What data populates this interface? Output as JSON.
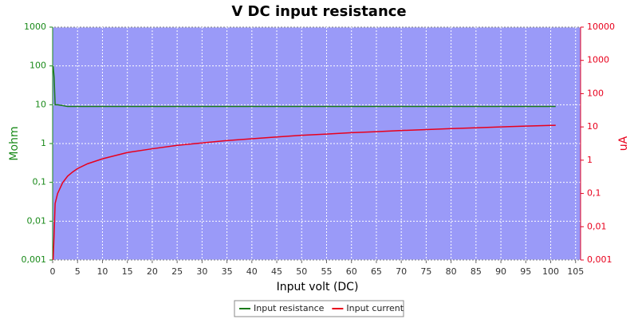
{
  "chart_data": {
    "type": "line",
    "title": "V DC input resistance",
    "x_label": "Input volt (DC)",
    "y_label": "Mohm",
    "y2_label": "uA",
    "xlim": [
      0,
      106
    ],
    "xticks": [
      0,
      5,
      10,
      15,
      20,
      25,
      30,
      35,
      40,
      45,
      50,
      55,
      60,
      65,
      70,
      75,
      80,
      85,
      90,
      95,
      100,
      105
    ],
    "ylim": [
      0.001,
      1000
    ],
    "log_y": true,
    "yticks": [
      {
        "value": 0.001,
        "label": "0,001"
      },
      {
        "value": 0.01,
        "label": "0,01"
      },
      {
        "value": 0.1,
        "label": "0,1"
      },
      1,
      10,
      100,
      1000
    ],
    "y2lim": [
      0.001,
      10000
    ],
    "log_y2": true,
    "y2ticks": [
      {
        "value": 0.001,
        "label": "0,001"
      },
      {
        "value": 0.01,
        "label": "0,01"
      },
      {
        "value": 0.1,
        "label": "0,1"
      },
      1,
      10,
      100,
      1000,
      10000
    ],
    "grid": true,
    "legend": "bottom",
    "x": [
      0.1,
      0.3,
      0.5,
      1,
      2,
      3,
      4,
      5,
      7,
      10,
      15,
      20,
      25,
      30,
      35,
      40,
      45,
      50,
      55,
      60,
      65,
      70,
      75,
      80,
      85,
      90,
      95,
      100,
      101
    ],
    "series": [
      {
        "name": "Input resistance",
        "color": "#1a7a1a",
        "values": [
          100,
          50,
          10,
          10,
          9.5,
          9,
          9,
          9,
          9,
          9,
          9,
          9,
          9,
          9,
          9,
          9,
          9,
          9,
          9,
          9,
          9,
          9,
          9,
          9,
          9,
          9,
          9,
          9,
          9
        ]
      },
      {
        "name": "Input current",
        "color": "#e8001c",
        "axis": "y2",
        "values": [
          0.001,
          0.006,
          0.05,
          0.1,
          0.21,
          0.33,
          0.44,
          0.56,
          0.78,
          1.1,
          1.7,
          2.2,
          2.8,
          3.3,
          3.9,
          4.4,
          5,
          5.6,
          6.1,
          6.7,
          7.2,
          7.8,
          8.3,
          8.9,
          9.4,
          10,
          10.6,
          11.1,
          11.2
        ]
      }
    ]
  }
}
